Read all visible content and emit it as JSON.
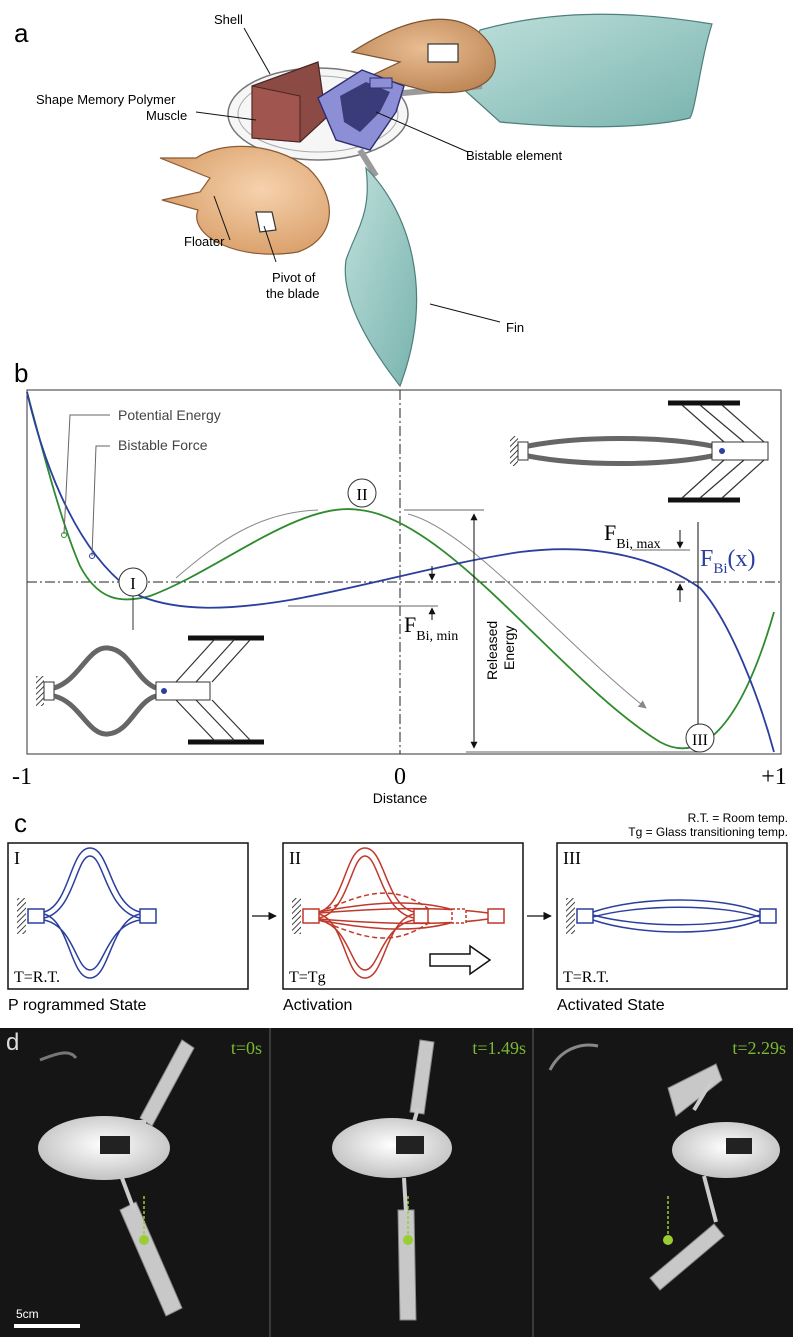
{
  "panels": {
    "a": {
      "label": "a",
      "callouts": {
        "shell": "Shell",
        "smp_line1": "Shape Memory Polymer",
        "smp_line2": "Muscle",
        "bistable": "Bistable element",
        "floater": "Floater",
        "pivot_line1": "Pivot of",
        "pivot_line2": "the blade",
        "fin": "Fin"
      },
      "colors": {
        "floater": "#e9b27e",
        "fin": "#8fc6c2",
        "bistable": "#8d8fd6",
        "muscle": "#8b4a44",
        "shell": "#d8d8d8"
      }
    },
    "b": {
      "label": "b",
      "legend": {
        "potential": "Potential Energy",
        "force": "Bistable Force"
      },
      "markers": {
        "i": "I",
        "ii": "II",
        "iii": "III"
      },
      "fmax_base": "F",
      "fmax_sub": "Bi, max",
      "fmin_base": "F",
      "fmin_sub": "Bi, min",
      "fx_base": "F",
      "fx_sub": "Bi",
      "fx_arg": "(x)",
      "released_line1": "Released",
      "released_line2": "Energy",
      "x_ticks": [
        "-1",
        "0",
        "+1"
      ],
      "xlabel": "Distance",
      "colors": {
        "potential": "#2e8b2e",
        "force": "#2b3f9e"
      }
    },
    "c": {
      "label": "c",
      "note1": "R.T. = Room temp.",
      "note2": "Tg = Glass transitioning temp.",
      "states": [
        {
          "roman": "I",
          "temp": "T=R.T.",
          "caption": "P rogrammed State",
          "color": "#2b3f9e"
        },
        {
          "roman": "II",
          "temp": "T=Tg",
          "caption": "Activation",
          "color": "#c0392b"
        },
        {
          "roman": "III",
          "temp": "T=R.T.",
          "caption": "Activated State",
          "color": "#2b3f9e"
        }
      ]
    },
    "d": {
      "label": "d",
      "frames": [
        {
          "time": "t=0s"
        },
        {
          "time": "t=1.49s"
        },
        {
          "time": "t=2.29s"
        }
      ],
      "scale_bar": "5cm",
      "time_color": "#7cb733"
    }
  }
}
